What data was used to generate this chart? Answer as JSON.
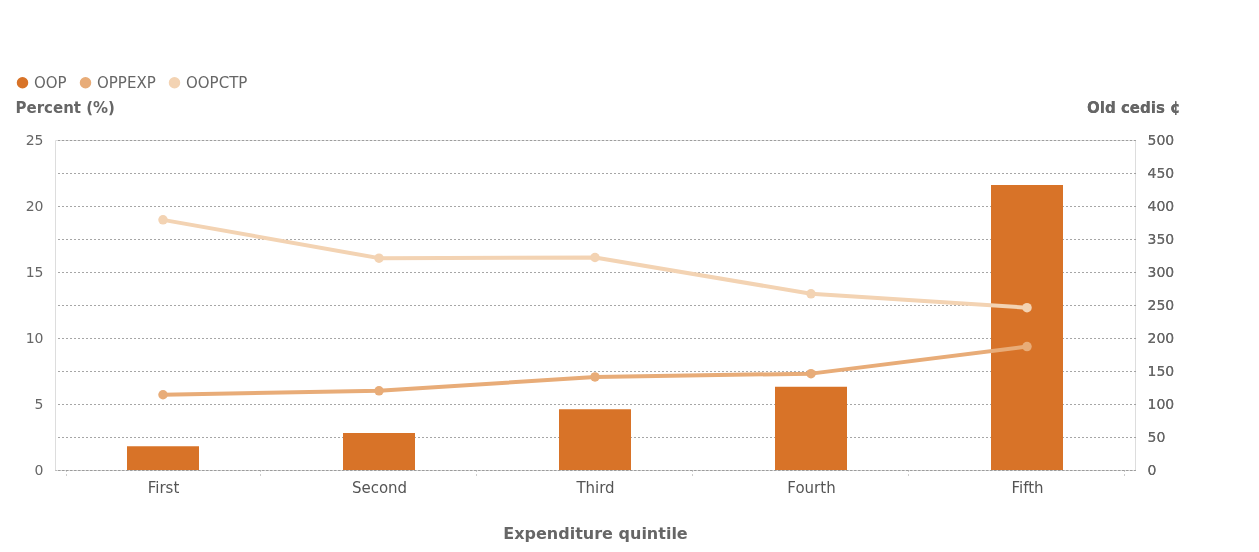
{
  "chart_data": {
    "type": "bar",
    "xlabel": "Expenditure quintile",
    "ylabel": "Percent (%)",
    "y2label": "Old cedis ¢",
    "categories": [
      "First",
      "Second",
      "Third",
      "Fourth",
      "Fifth"
    ],
    "series": [
      {
        "name": "OOP",
        "color": "#d87328",
        "values": [
          1.8,
          2.8,
          4.6,
          6.3,
          21.6
        ]
      },
      {
        "name": "OPPEXP",
        "type": "line",
        "axis": "y2",
        "color": "#e8ac78",
        "values": [
          114,
          120,
          141,
          146,
          187
        ]
      },
      {
        "name": "OOPCTP",
        "type": "line",
        "axis": "y2",
        "color": "#f3d3b3",
        "values": [
          379,
          321,
          322,
          267,
          246
        ]
      }
    ],
    "ylim": [
      0,
      25
    ],
    "yticks": [
      0,
      5,
      10,
      15,
      20,
      25
    ],
    "y2lim": [
      0,
      500
    ],
    "y2ticks": [
      0,
      50,
      100,
      150,
      200,
      250,
      300,
      350,
      400,
      450,
      500
    ],
    "grid": true,
    "legend": "top left",
    "marker": "circle",
    "line_style": "solid"
  }
}
